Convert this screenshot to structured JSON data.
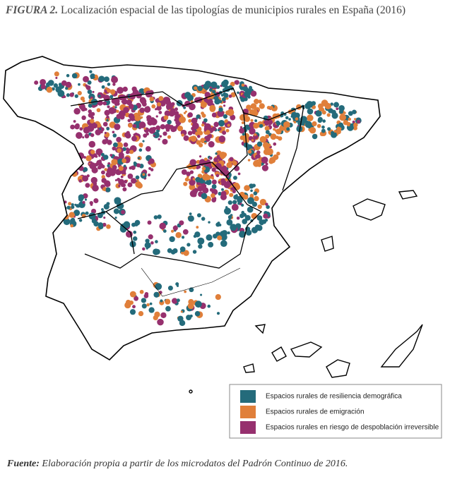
{
  "header": {
    "label": "FIGURA 2.",
    "title": "Localización espacial de las tipologías de municipios rurales en España (2016)"
  },
  "legend": {
    "items": [
      {
        "label": "Espacios rurales de resiliencia demográfica",
        "color": "#246b7b"
      },
      {
        "label": "Espacios rurales de emigración",
        "color": "#e07f3a"
      },
      {
        "label": "Espacios rurales en riesgo de despoblación irreversible",
        "color": "#96306e"
      }
    ]
  },
  "footer": {
    "label": "Fuente:",
    "text": "Elaboración propia a partir de los microdatos del Padrón Continuo de 2016."
  }
}
